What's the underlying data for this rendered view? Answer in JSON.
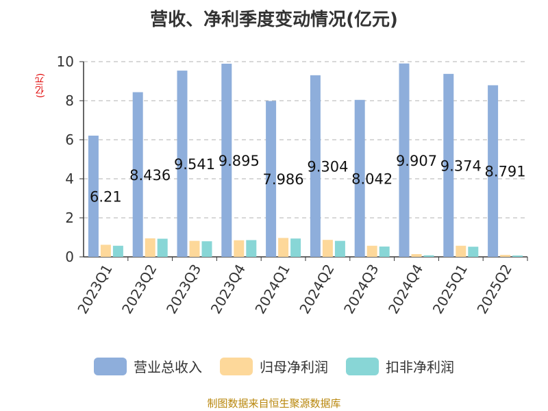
{
  "chart_data": {
    "type": "bar",
    "title": "营收、净利季度变动情况(亿元)",
    "ylabel": "(亿元)",
    "ylim": [
      0,
      10
    ],
    "yticks": [
      0,
      2,
      4,
      6,
      8,
      10
    ],
    "grid": true,
    "legend_position": "bottom",
    "categories": [
      "2023Q1",
      "2023Q2",
      "2023Q3",
      "2023Q4",
      "2024Q1",
      "2024Q2",
      "2024Q3",
      "2024Q4",
      "2025Q1",
      "2025Q2"
    ],
    "series": [
      {
        "name": "营业总收入",
        "color": "#8eaedb",
        "labeled": true,
        "values": [
          6.21,
          8.436,
          9.541,
          9.895,
          7.986,
          9.304,
          8.042,
          9.907,
          9.374,
          8.791
        ]
      },
      {
        "name": "归母净利润",
        "color": "#fdd89a",
        "labeled": false,
        "values": [
          0.62,
          0.95,
          0.82,
          0.85,
          0.97,
          0.87,
          0.57,
          0.14,
          0.57,
          0.1
        ]
      },
      {
        "name": "扣非净利润",
        "color": "#88d6d6",
        "labeled": false,
        "values": [
          0.57,
          0.93,
          0.8,
          0.86,
          0.94,
          0.82,
          0.53,
          0.08,
          0.52,
          0.07
        ]
      }
    ]
  },
  "source": "制图数据来自恒生聚源数据库"
}
